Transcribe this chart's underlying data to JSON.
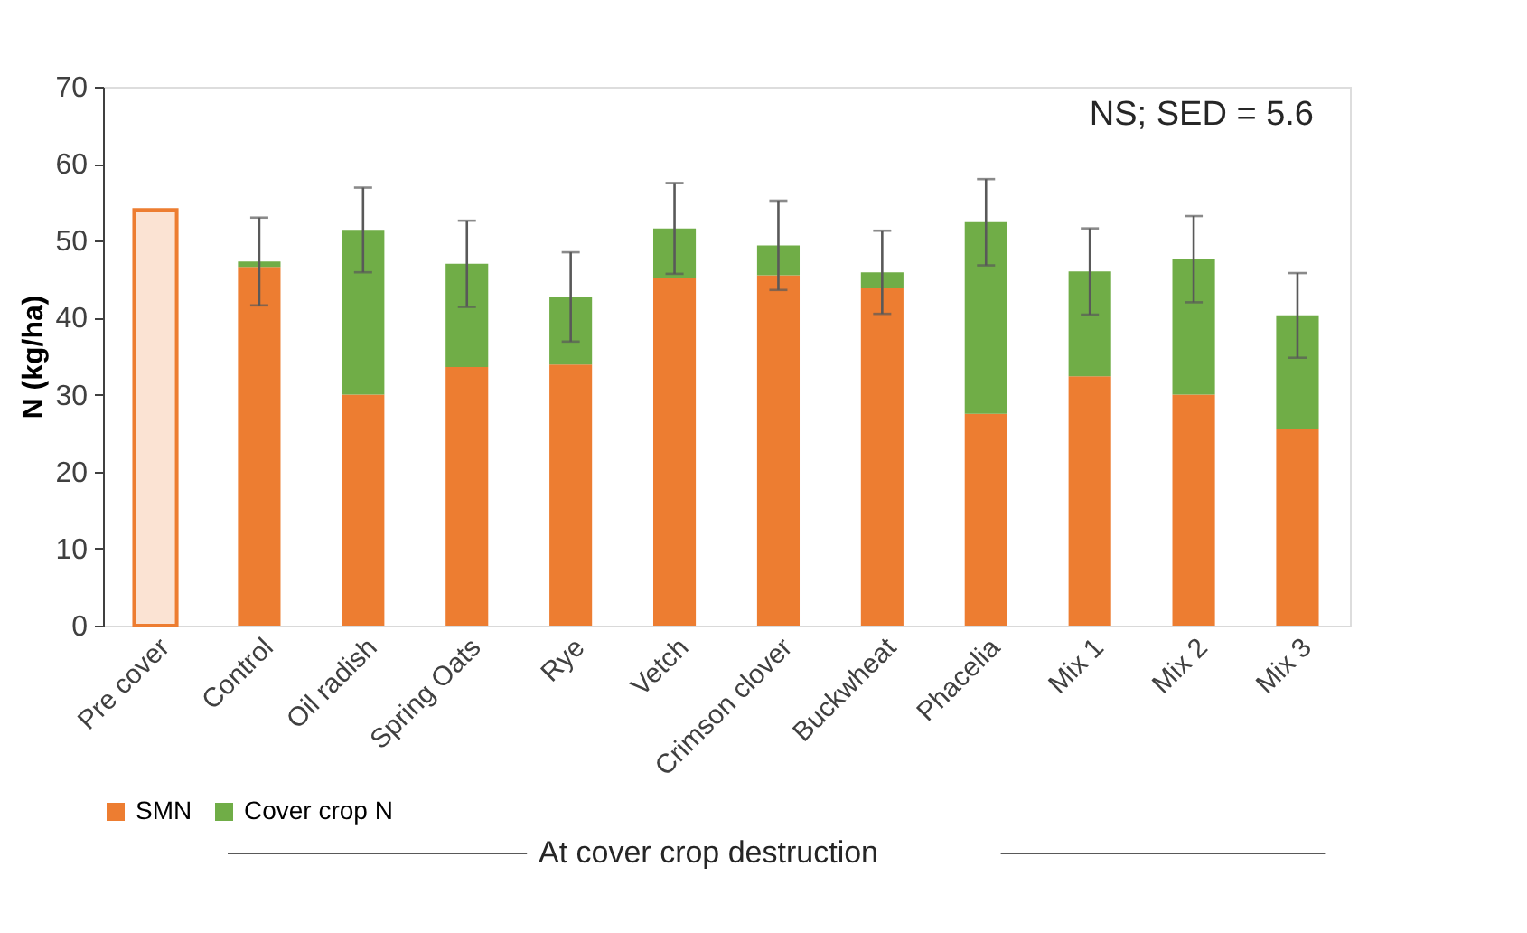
{
  "chart_data": {
    "type": "bar",
    "stacked": true,
    "ylabel": "N (kg/ha)",
    "categories": [
      "Pre cover",
      "Control",
      "Oil radish",
      "Spring Oats",
      "Rye",
      "Vetch",
      "Crimson clover",
      "Buckwheat",
      "Phacelia",
      "Mix 1",
      "Mix 2",
      "Mix 3"
    ],
    "series": [
      {
        "name": "SMN",
        "color": "#ed7d31",
        "colors": [
          "#fbe3d3",
          "#ed7d31",
          "#ed7d31",
          "#ed7d31",
          "#ed7d31",
          "#ed7d31",
          "#ed7d31",
          "#ed7d31",
          "#ed7d31",
          "#ed7d31",
          "#ed7d31",
          "#ed7d31"
        ],
        "values": [
          54,
          46.6,
          30.0,
          33.6,
          33.9,
          45.1,
          45.5,
          43.8,
          27.5,
          32.4,
          30.0,
          25.6
        ]
      },
      {
        "name": "Cover crop N",
        "color": "#70ad47",
        "values": [
          null,
          0.7,
          21.4,
          13.4,
          8.8,
          6.5,
          3.9,
          2.1,
          24.9,
          13.6,
          17.6,
          14.7
        ],
        "errors": [
          null,
          5.7,
          5.5,
          5.6,
          5.8,
          5.9,
          5.8,
          5.4,
          5.6,
          5.6,
          5.6,
          5.5
        ]
      }
    ],
    "ylim": [
      0,
      70
    ],
    "yticks": [
      0,
      10,
      20,
      30,
      40,
      50,
      60,
      70
    ],
    "grid": false,
    "legend": "bottom",
    "annotations": [
      "NS; SED = 5.6",
      "At cover crop destruction"
    ]
  }
}
